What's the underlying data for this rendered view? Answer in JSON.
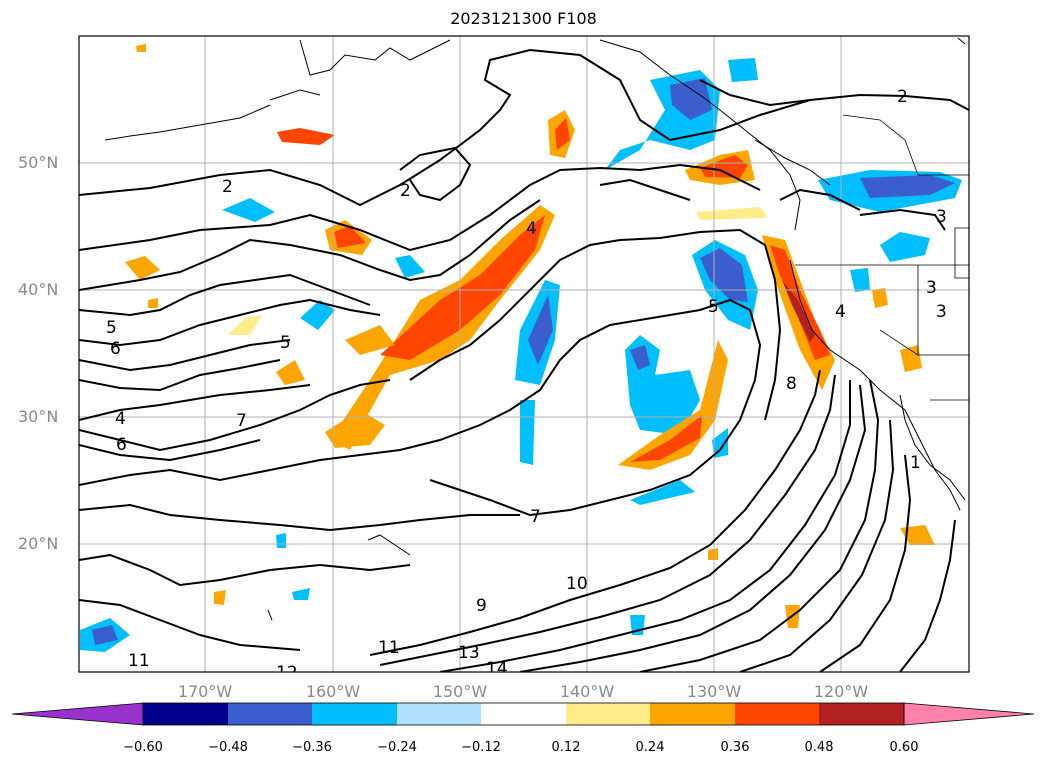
{
  "title": "2023121300 F108",
  "lat_labels": [
    "50°N",
    "40°N",
    "30°N",
    "20°N"
  ],
  "lon_labels": [
    "170°W",
    "160°W",
    "150°W",
    "140°W",
    "130°W",
    "120°W"
  ],
  "colorbar": {
    "ticks": [
      "−0.60",
      "−0.48",
      "−0.36",
      "−0.24",
      "−0.12",
      "0.12",
      "0.24",
      "0.36",
      "0.48",
      "0.60"
    ],
    "colors": [
      "#9932cc",
      "#00008b",
      "#3a5fcd",
      "#00bfff",
      "#b0e2ff",
      "#ffffff",
      "#ffec8b",
      "#ffa500",
      "#ff4500",
      "#b22222",
      "#ff82ab"
    ]
  },
  "contour_labels": [
    "2",
    "2",
    "2",
    "3",
    "3",
    "3",
    "4",
    "4",
    "4",
    "5",
    "5",
    "5",
    "6",
    "6",
    "7",
    "7",
    "8",
    "9",
    "10",
    "11",
    "11",
    "12",
    "13",
    "14",
    "1"
  ]
}
